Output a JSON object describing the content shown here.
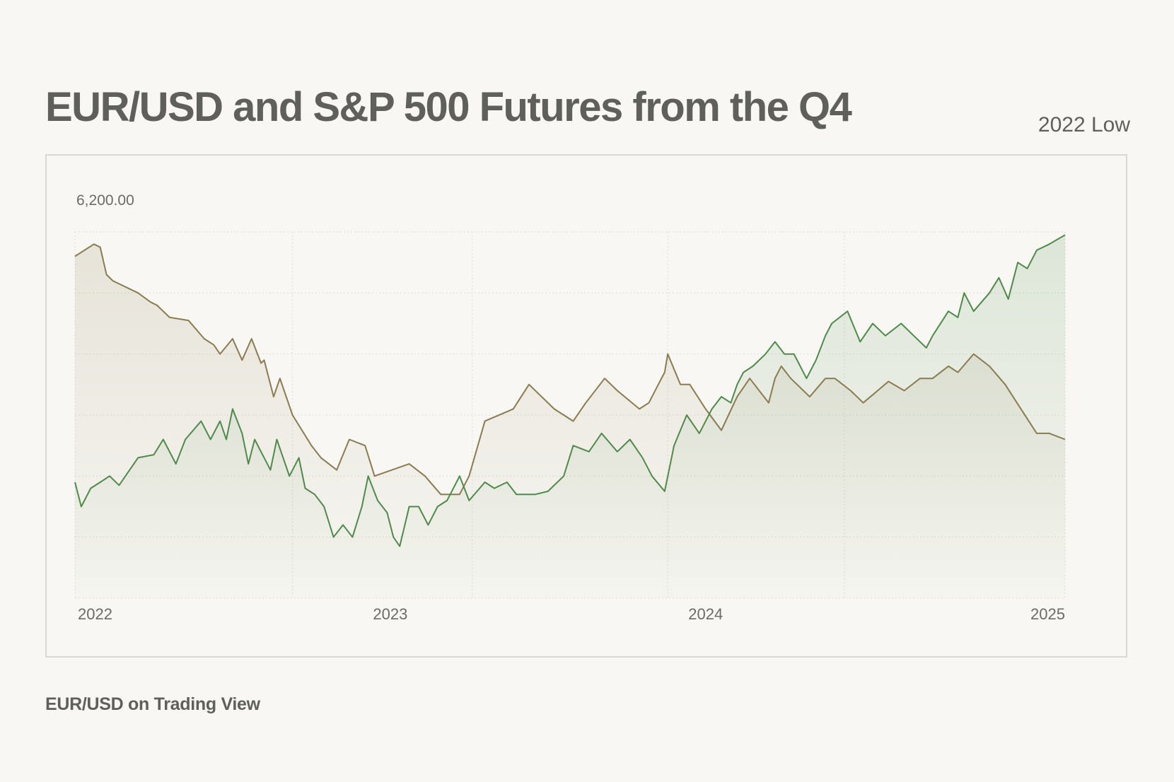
{
  "header": {
    "title": "EUR/USD and S&P 500 Futures from the Q4",
    "subtitle": "2022 Low"
  },
  "footer": {
    "source": "EUR/USD on Trading View"
  },
  "colors": {
    "background": "#f8f7f3",
    "eur_usd_line": "#8b7b50",
    "sp500_line": "#4f8a4b",
    "grid": "#dedcd6",
    "text": "#5f5f5c"
  },
  "chart_data": {
    "type": "area",
    "y_label_top": "6,200.00",
    "x_ticks": [
      {
        "label": "2022",
        "x": 2022.0
      },
      {
        "label": "2023",
        "x": 2023.0
      },
      {
        "label": "2024",
        "x": 2024.0
      },
      {
        "label": "2025",
        "x": 2025.14
      }
    ],
    "x_range": [
      2022.0,
      2025.14
    ],
    "ylim": [
      0,
      6
    ],
    "grid": {
      "horizontal_lines": 6,
      "vertical_at": [
        2022.0,
        2022.69,
        2023.26,
        2023.88,
        2024.44,
        2025.14
      ]
    },
    "series": [
      {
        "key": "eur_usd",
        "color": "#8b7b50",
        "x": [
          2022.0,
          2022.06,
          2022.08,
          2022.1,
          2022.12,
          2022.2,
          2022.24,
          2022.26,
          2022.3,
          2022.36,
          2022.41,
          2022.44,
          2022.46,
          2022.5,
          2022.53,
          2022.56,
          2022.59,
          2022.6,
          2022.62,
          2022.63,
          2022.65,
          2022.69,
          2022.75,
          2022.78,
          2022.83,
          2022.87,
          2022.92,
          2022.95,
          2023.06,
          2023.11,
          2023.16,
          2023.22,
          2023.25,
          2023.3,
          2023.39,
          2023.44,
          2023.52,
          2023.58,
          2023.62,
          2023.68,
          2023.72,
          2023.79,
          2023.82,
          2023.85,
          2023.87,
          2023.88,
          2023.92,
          2023.95,
          2024.0,
          2024.05,
          2024.1,
          2024.14,
          2024.17,
          2024.2,
          2024.22,
          2024.24,
          2024.27,
          2024.33,
          2024.38,
          2024.41,
          2024.46,
          2024.5,
          2024.58,
          2024.63,
          2024.68,
          2024.72,
          2024.77,
          2024.8,
          2024.85,
          2024.9,
          2024.95,
          2025.0,
          2025.05,
          2025.09,
          2025.14
        ],
        "y": [
          5.6,
          5.8,
          5.75,
          5.3,
          5.2,
          5.0,
          4.85,
          4.8,
          4.6,
          4.55,
          4.25,
          4.15,
          4.0,
          4.25,
          3.9,
          4.25,
          3.85,
          3.9,
          3.5,
          3.3,
          3.6,
          3.0,
          2.5,
          2.3,
          2.1,
          2.6,
          2.5,
          2.0,
          2.2,
          2.0,
          1.7,
          1.7,
          2.0,
          2.9,
          3.1,
          3.5,
          3.1,
          2.9,
          3.2,
          3.6,
          3.4,
          3.1,
          3.2,
          3.5,
          3.7,
          4.0,
          3.5,
          3.5,
          3.1,
          2.75,
          3.3,
          3.6,
          3.4,
          3.2,
          3.6,
          3.8,
          3.6,
          3.3,
          3.6,
          3.6,
          3.4,
          3.2,
          3.55,
          3.4,
          3.6,
          3.6,
          3.8,
          3.7,
          4.0,
          3.8,
          3.5,
          3.1,
          2.7,
          2.7,
          2.6
        ]
      },
      {
        "key": "sp500",
        "color": "#4f8a4b",
        "x": [
          2022.0,
          2022.02,
          2022.05,
          2022.08,
          2022.11,
          2022.14,
          2022.2,
          2022.25,
          2022.28,
          2022.32,
          2022.35,
          2022.4,
          2022.43,
          2022.46,
          2022.48,
          2022.5,
          2022.53,
          2022.55,
          2022.57,
          2022.6,
          2022.62,
          2022.64,
          2022.68,
          2022.71,
          2022.73,
          2022.76,
          2022.79,
          2022.82,
          2022.85,
          2022.88,
          2022.91,
          2022.93,
          2022.96,
          2022.99,
          2023.01,
          2023.03,
          2023.06,
          2023.09,
          2023.12,
          2023.15,
          2023.18,
          2023.22,
          2023.25,
          2023.3,
          2023.33,
          2023.37,
          2023.4,
          2023.46,
          2023.5,
          2023.55,
          2023.58,
          2023.63,
          2023.67,
          2023.72,
          2023.76,
          2023.8,
          2023.83,
          2023.87,
          2023.9,
          2023.94,
          2023.98,
          2024.02,
          2024.05,
          2024.08,
          2024.1,
          2024.12,
          2024.15,
          2024.19,
          2024.22,
          2024.25,
          2024.28,
          2024.32,
          2024.35,
          2024.38,
          2024.4,
          2024.45,
          2024.49,
          2024.53,
          2024.57,
          2024.62,
          2024.66,
          2024.7,
          2024.72,
          2024.77,
          2024.8,
          2024.82,
          2024.85,
          2024.9,
          2024.93,
          2024.96,
          2024.99,
          2025.02,
          2025.05,
          2025.09,
          2025.14
        ],
        "y": [
          1.9,
          1.5,
          1.8,
          1.9,
          2.0,
          1.85,
          2.3,
          2.35,
          2.6,
          2.2,
          2.6,
          2.9,
          2.6,
          2.9,
          2.6,
          3.1,
          2.7,
          2.2,
          2.6,
          2.3,
          2.1,
          2.6,
          2.0,
          2.3,
          1.8,
          1.7,
          1.5,
          1.0,
          1.2,
          1.0,
          1.5,
          2.0,
          1.6,
          1.4,
          1.0,
          0.85,
          1.5,
          1.5,
          1.2,
          1.5,
          1.6,
          2.0,
          1.6,
          1.9,
          1.8,
          1.9,
          1.7,
          1.7,
          1.75,
          2.0,
          2.5,
          2.4,
          2.7,
          2.4,
          2.6,
          2.3,
          2.0,
          1.75,
          2.5,
          3.0,
          2.7,
          3.1,
          3.3,
          3.2,
          3.5,
          3.7,
          3.8,
          4.0,
          4.2,
          4.0,
          4.0,
          3.6,
          3.9,
          4.3,
          4.5,
          4.7,
          4.2,
          4.5,
          4.3,
          4.5,
          4.3,
          4.1,
          4.3,
          4.7,
          4.6,
          5.0,
          4.7,
          5.0,
          5.25,
          4.9,
          5.5,
          5.4,
          5.7,
          5.8,
          5.95
        ]
      }
    ]
  }
}
